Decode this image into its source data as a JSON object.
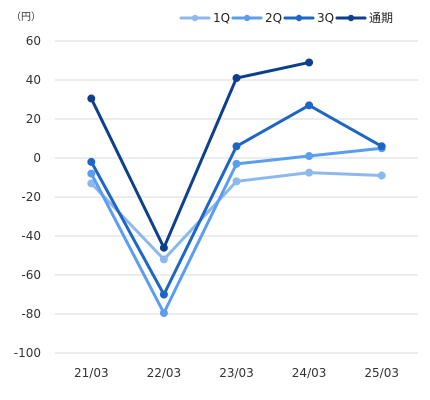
{
  "chart_data": {
    "type": "line",
    "unit_label": "（円）",
    "categories": [
      "21/03",
      "22/03",
      "23/03",
      "24/03",
      "25/03"
    ],
    "ylim": [
      -100,
      60
    ],
    "yticks": [
      60,
      40,
      20,
      0,
      -20,
      -40,
      -60,
      -80,
      -100
    ],
    "grid": true,
    "legend_position": "top-right",
    "series": [
      {
        "name": "1Q",
        "color": "#8db8ee",
        "values": [
          -13,
          -52,
          -12,
          -7.5,
          -9
        ]
      },
      {
        "name": "2Q",
        "color": "#5b9df0",
        "values": [
          -8,
          -79.5,
          -3,
          1,
          5
        ]
      },
      {
        "name": "3Q",
        "color": "#1e66c6",
        "values": [
          -2,
          -70,
          6,
          27,
          6
        ]
      },
      {
        "name": "通期",
        "color": "#0d3f8c",
        "values": [
          30.5,
          -46,
          41,
          49,
          null
        ]
      }
    ]
  }
}
